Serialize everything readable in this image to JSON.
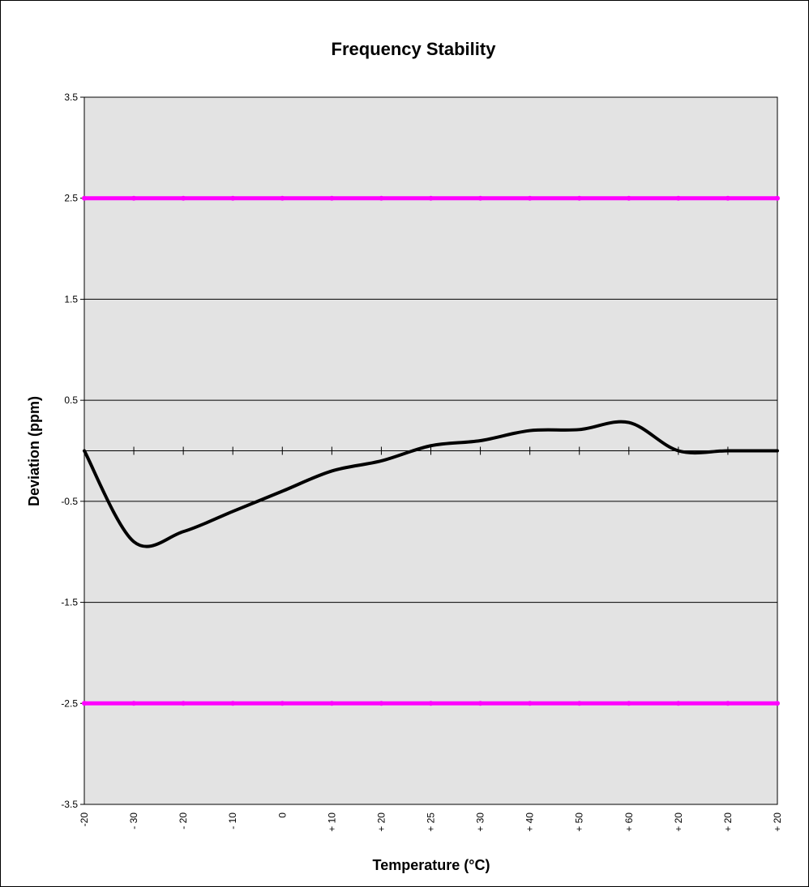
{
  "chart_data": {
    "type": "line",
    "title": "Frequency Stability",
    "xlabel": "Temperature (°C)",
    "ylabel": "Deviation (ppm)",
    "categories": [
      "-20",
      "- 30",
      "- 20",
      "- 10",
      "0",
      "+ 10",
      "+ 20",
      "+ 25",
      "+ 30",
      "+ 40",
      "+ 50",
      "+ 60",
      "+ 20",
      "+ 20",
      "+ 20"
    ],
    "ylim": [
      -3.5,
      3.5
    ],
    "yticks": [
      "3.5",
      "2.5",
      "1.5",
      "0.5",
      "-0.5",
      "-1.5",
      "-2.5",
      "-3.5"
    ],
    "grid": true,
    "series": [
      {
        "values": [
          0,
          -0.9,
          -0.8,
          -0.6,
          -0.4,
          -0.2,
          -0.1,
          0.05,
          0.1,
          0.2,
          0.21,
          0.28,
          0.0,
          0.0,
          0.0
        ],
        "color": "#000000"
      },
      {
        "values": [
          2.5,
          2.5,
          2.5,
          2.5,
          2.5,
          2.5,
          2.5,
          2.5,
          2.5,
          2.5,
          2.5,
          2.5,
          2.5,
          2.5,
          2.5
        ],
        "color": "#ff00ff"
      },
      {
        "values": [
          -2.5,
          -2.5,
          -2.5,
          -2.5,
          -2.5,
          -2.5,
          -2.5,
          -2.5,
          -2.5,
          -2.5,
          -2.5,
          -2.5,
          -2.5,
          -2.5,
          -2.5
        ],
        "color": "#ff00ff"
      }
    ],
    "plot_background": "#e3e3e3"
  }
}
